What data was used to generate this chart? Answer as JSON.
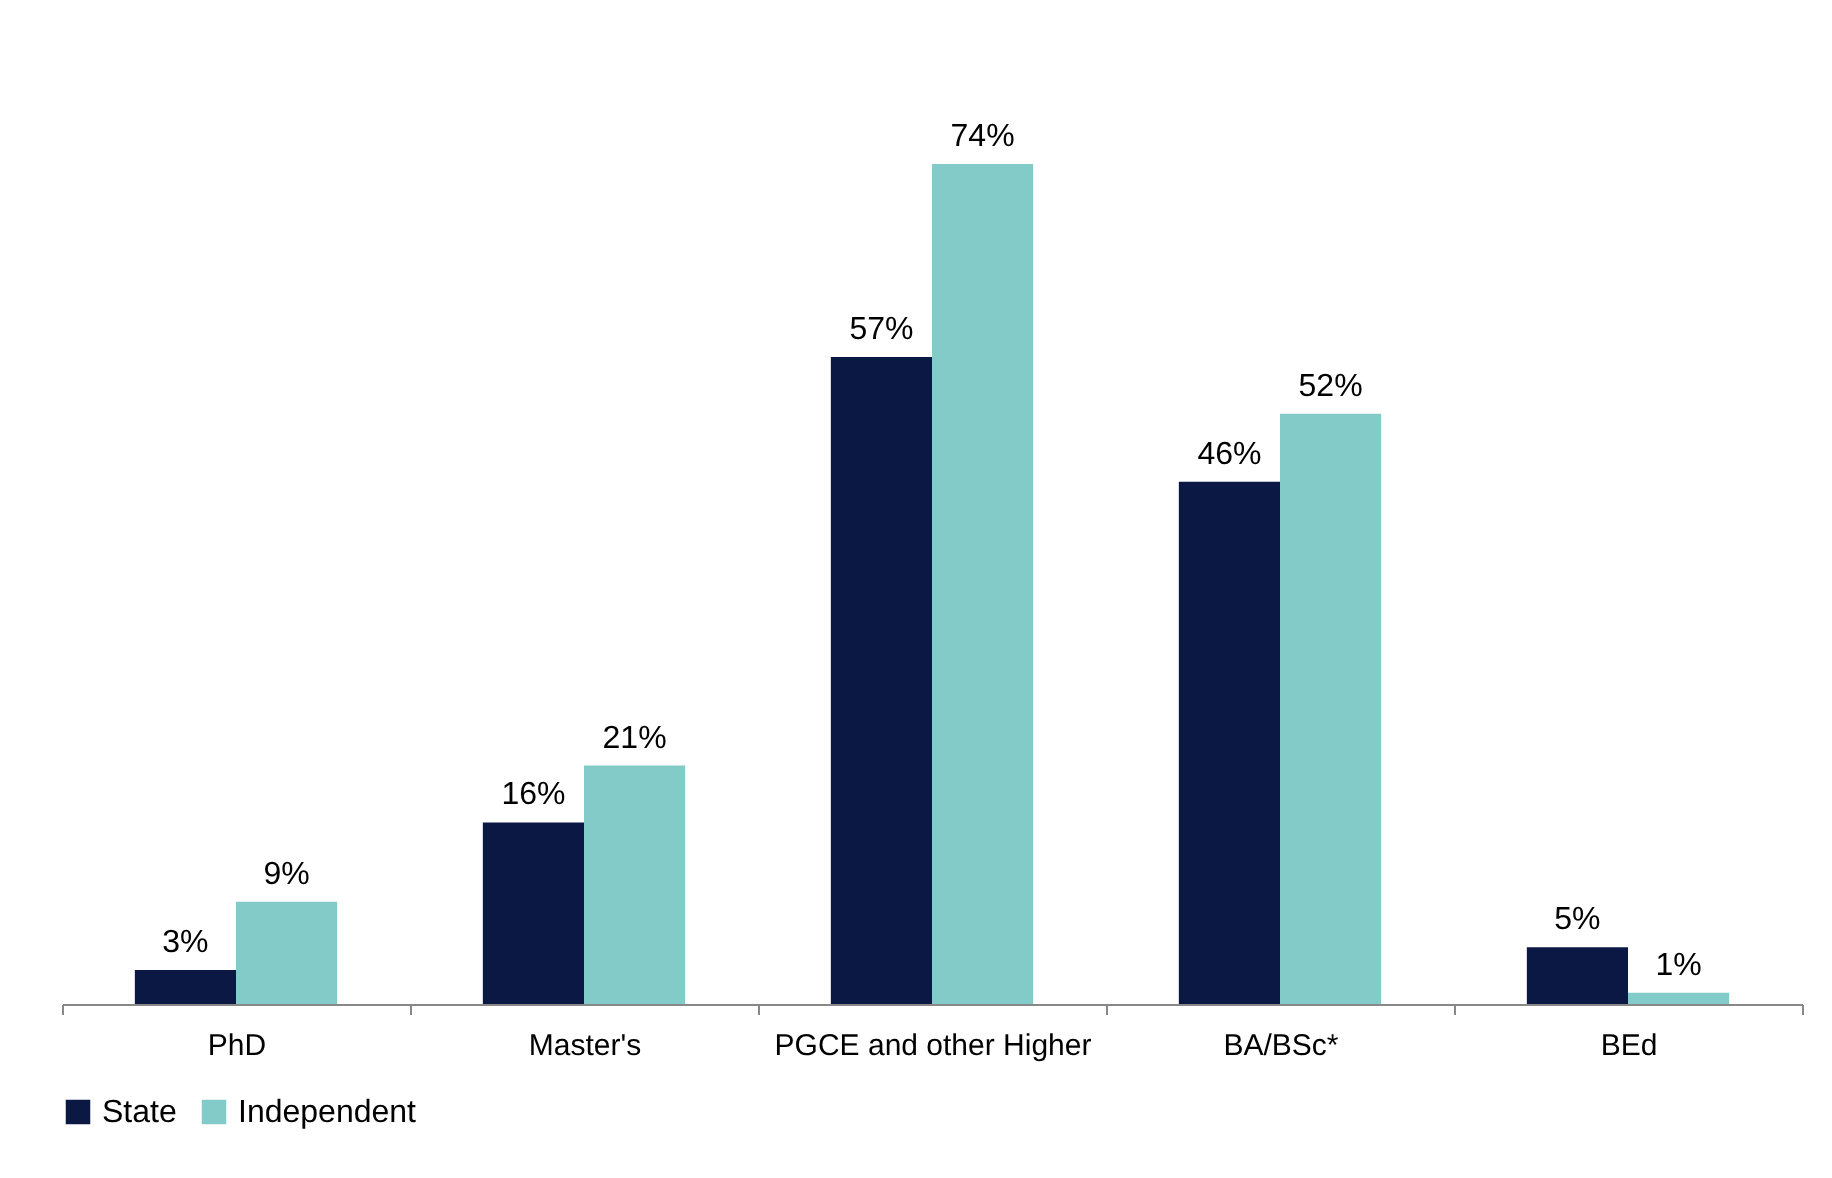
{
  "chart_data": {
    "type": "bar",
    "categories": [
      "PhD",
      "Master's",
      "PGCE and other Higher",
      "BA/BSc*",
      "BEd"
    ],
    "series": [
      {
        "name": "State",
        "color": "#0a1843",
        "values": [
          3,
          16,
          57,
          46,
          5
        ],
        "value_labels": [
          "3%",
          "16%",
          "57%",
          "46%",
          "5%"
        ]
      },
      {
        "name": "Independent",
        "color": "#82cbc8",
        "values": [
          9,
          21,
          74,
          52,
          1
        ],
        "value_labels": [
          "9%",
          "21%",
          "74%",
          "52%",
          "1%"
        ]
      }
    ],
    "grid": false,
    "legend": "bottom"
  }
}
